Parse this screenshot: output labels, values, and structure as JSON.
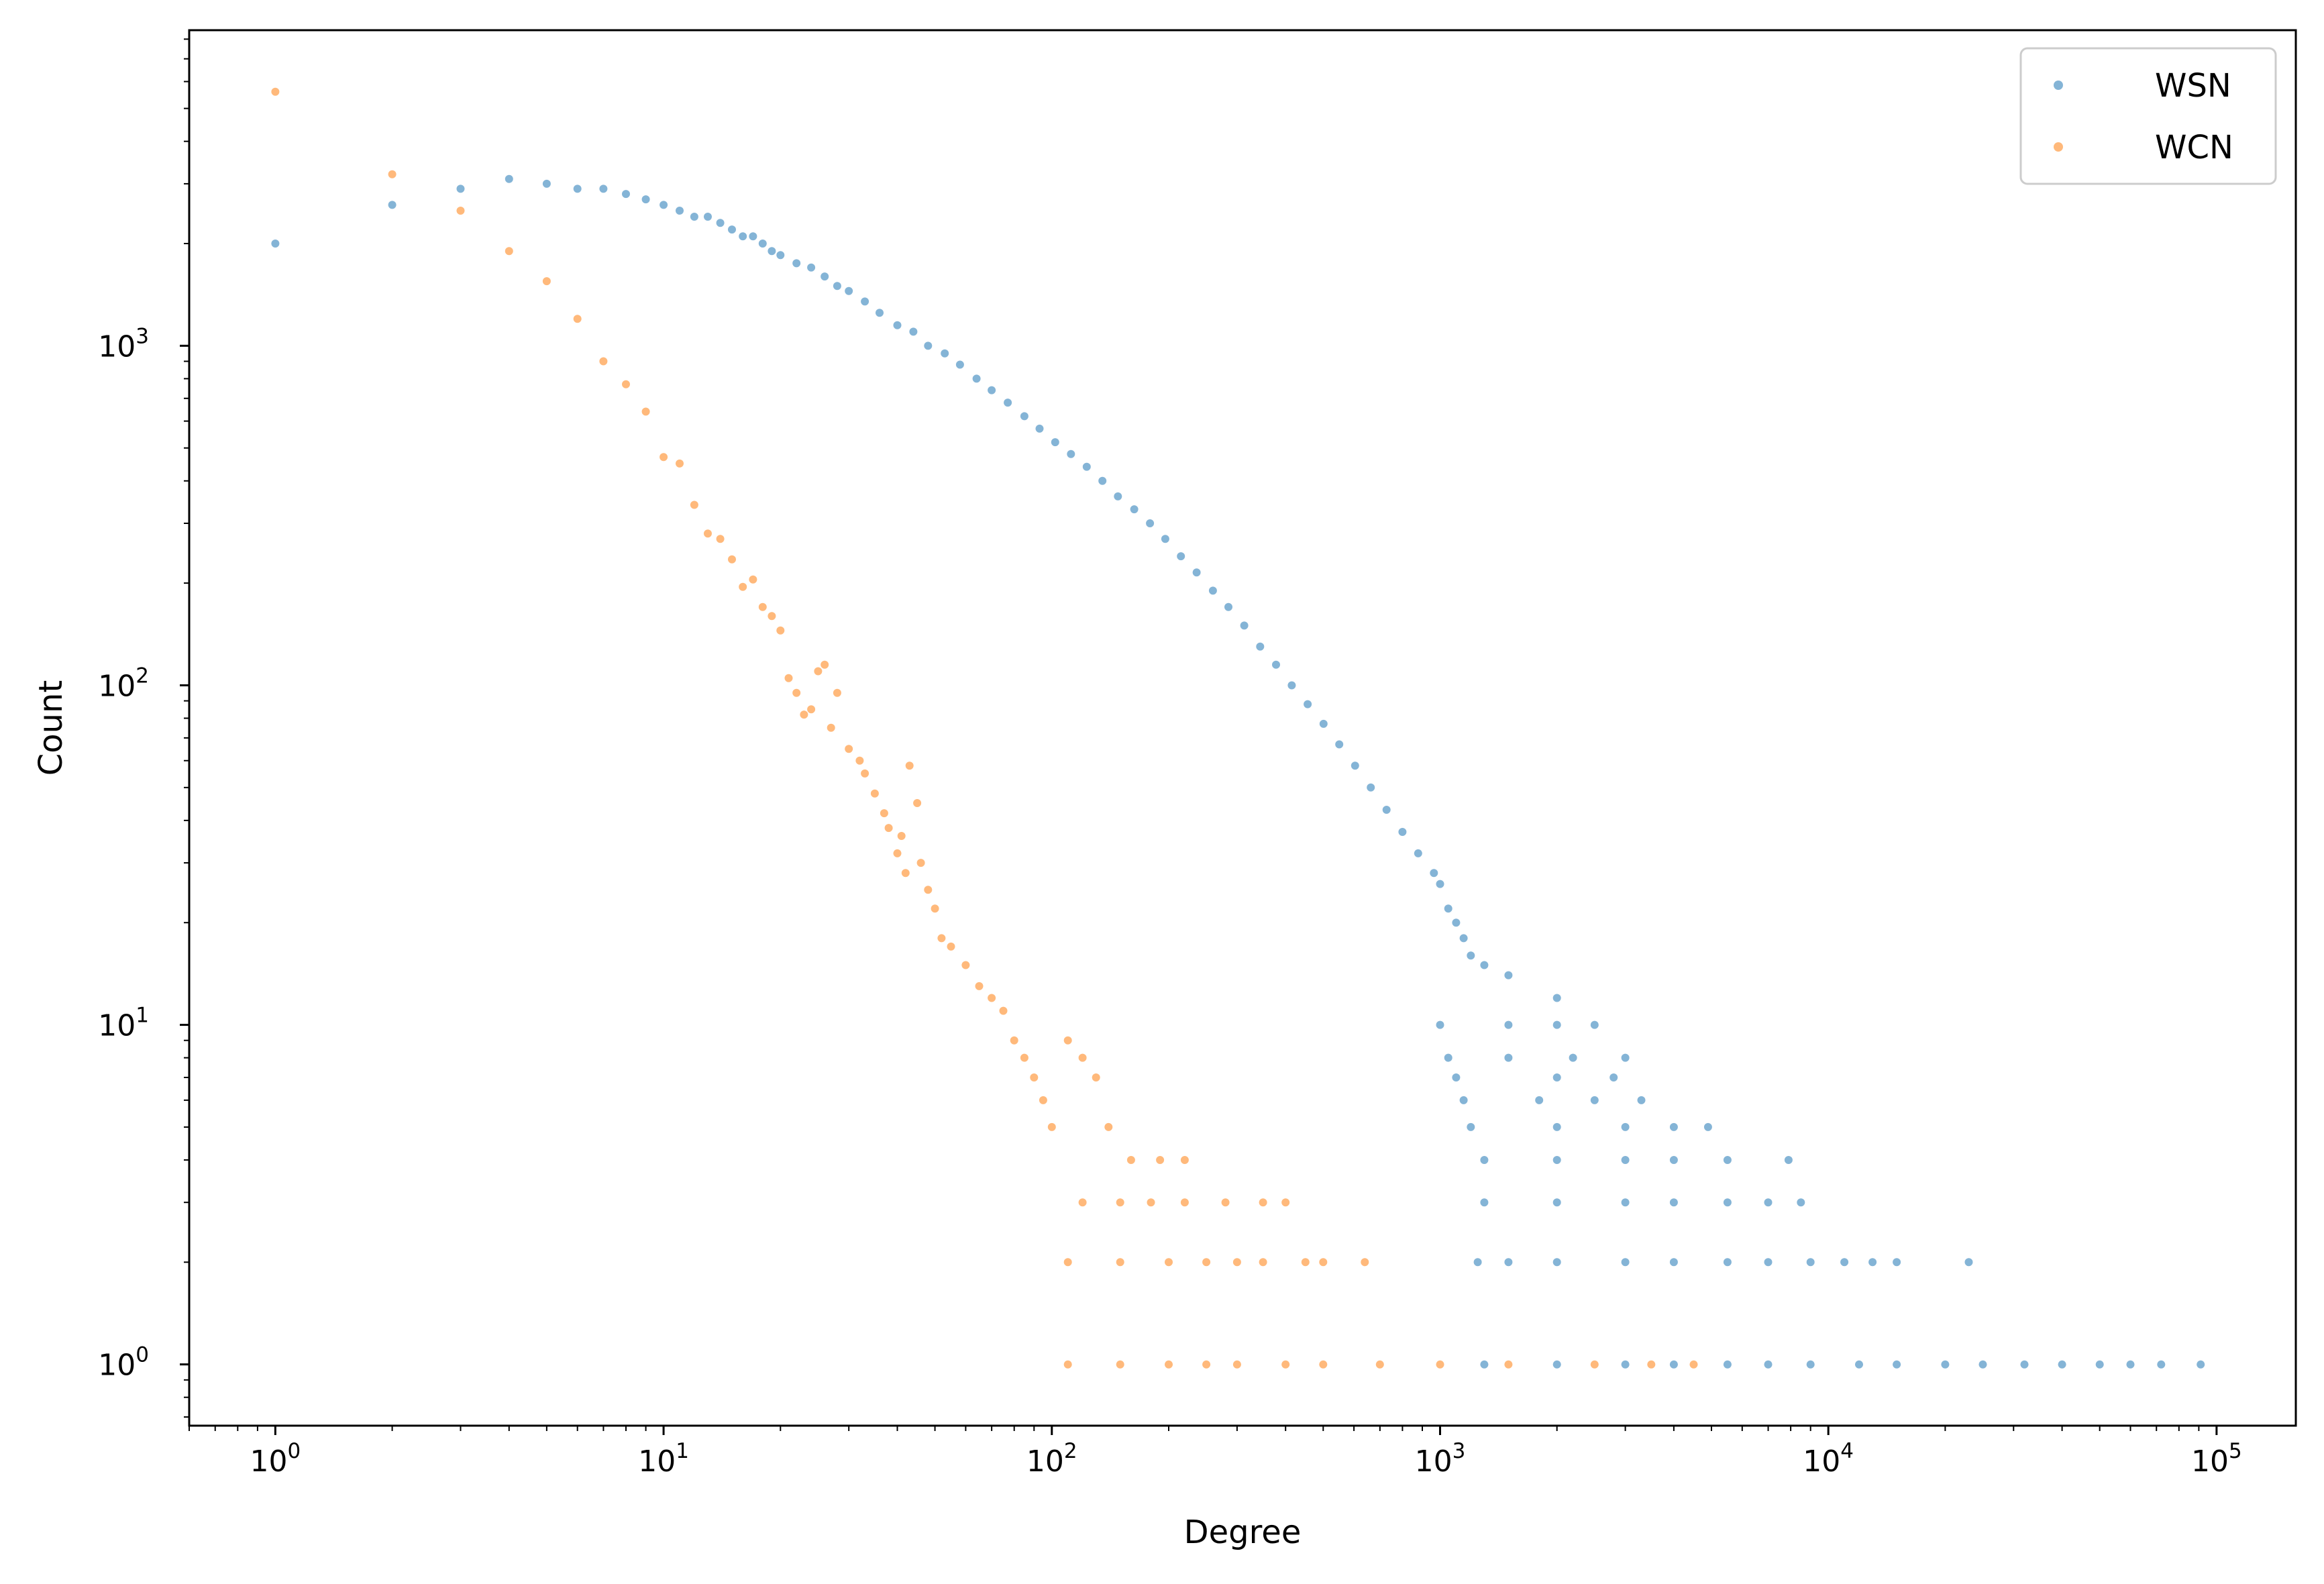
{
  "chart_data": {
    "type": "scatter",
    "xlabel": "Degree",
    "ylabel": "Count",
    "xscale": "log",
    "yscale": "log",
    "xlim": [
      0.6,
      160000
    ],
    "ylim": [
      0.66,
      8500
    ],
    "xticks": [
      {
        "value": 1,
        "base": "10",
        "exp": "0"
      },
      {
        "value": 10,
        "base": "10",
        "exp": "1"
      },
      {
        "value": 100,
        "base": "10",
        "exp": "2"
      },
      {
        "value": 1000,
        "base": "10",
        "exp": "3"
      },
      {
        "value": 10000,
        "base": "10",
        "exp": "4"
      },
      {
        "value": 100000,
        "base": "10",
        "exp": "5"
      }
    ],
    "yticks": [
      {
        "value": 1,
        "base": "10",
        "exp": "0"
      },
      {
        "value": 10,
        "base": "10",
        "exp": "1"
      },
      {
        "value": 100,
        "base": "10",
        "exp": "2"
      },
      {
        "value": 1000,
        "base": "10",
        "exp": "3"
      }
    ],
    "grid": false,
    "legend_position": "top-right",
    "series": [
      {
        "name": "WSN",
        "color": "#1f77b4",
        "points": [
          [
            1,
            2000
          ],
          [
            2,
            2600
          ],
          [
            3,
            2900
          ],
          [
            4,
            3100
          ],
          [
            5,
            3000
          ],
          [
            6,
            2900
          ],
          [
            7,
            2900
          ],
          [
            8,
            2800
          ],
          [
            9,
            2700
          ],
          [
            10,
            2600
          ],
          [
            11,
            2500
          ],
          [
            12,
            2400
          ],
          [
            13,
            2400
          ],
          [
            14,
            2300
          ],
          [
            15,
            2200
          ],
          [
            16,
            2100
          ],
          [
            17,
            2100
          ],
          [
            18,
            2000
          ],
          [
            19,
            1900
          ],
          [
            20,
            1850
          ],
          [
            22,
            1750
          ],
          [
            24,
            1700
          ],
          [
            26,
            1600
          ],
          [
            28,
            1500
          ],
          [
            30,
            1450
          ],
          [
            33,
            1350
          ],
          [
            36,
            1250
          ],
          [
            40,
            1150
          ],
          [
            44,
            1100
          ],
          [
            48,
            1000
          ],
          [
            53,
            950
          ],
          [
            58,
            880
          ],
          [
            64,
            800
          ],
          [
            70,
            740
          ],
          [
            77,
            680
          ],
          [
            85,
            620
          ],
          [
            93,
            570
          ],
          [
            102,
            520
          ],
          [
            112,
            480
          ],
          [
            123,
            440
          ],
          [
            135,
            400
          ],
          [
            148,
            360
          ],
          [
            163,
            330
          ],
          [
            179,
            300
          ],
          [
            196,
            270
          ],
          [
            215,
            240
          ],
          [
            236,
            215
          ],
          [
            260,
            190
          ],
          [
            285,
            170
          ],
          [
            313,
            150
          ],
          [
            344,
            130
          ],
          [
            378,
            115
          ],
          [
            415,
            100
          ],
          [
            456,
            88
          ],
          [
            501,
            77
          ],
          [
            550,
            67
          ],
          [
            604,
            58
          ],
          [
            663,
            50
          ],
          [
            728,
            43
          ],
          [
            800,
            37
          ],
          [
            878,
            32
          ],
          [
            964,
            28
          ],
          [
            1000,
            26
          ],
          [
            1050,
            22
          ],
          [
            1100,
            20
          ],
          [
            1150,
            18
          ],
          [
            1200,
            16
          ],
          [
            1300,
            15
          ],
          [
            1500,
            14
          ],
          [
            2000,
            12
          ],
          [
            1000,
            10
          ],
          [
            1500,
            10
          ],
          [
            2000,
            10
          ],
          [
            2500,
            10
          ],
          [
            1050,
            8
          ],
          [
            1500,
            8
          ],
          [
            2200,
            8
          ],
          [
            3000,
            8
          ],
          [
            1100,
            7
          ],
          [
            2000,
            7
          ],
          [
            2800,
            7
          ],
          [
            1150,
            6
          ],
          [
            1800,
            6
          ],
          [
            2500,
            6
          ],
          [
            3300,
            6
          ],
          [
            1200,
            5
          ],
          [
            2000,
            5
          ],
          [
            3000,
            5
          ],
          [
            4000,
            5
          ],
          [
            4900,
            5
          ],
          [
            1300,
            4
          ],
          [
            2000,
            4
          ],
          [
            3000,
            4
          ],
          [
            4000,
            4
          ],
          [
            5500,
            4
          ],
          [
            7900,
            4
          ],
          [
            1300,
            3
          ],
          [
            2000,
            3
          ],
          [
            3000,
            3
          ],
          [
            4000,
            3
          ],
          [
            5500,
            3
          ],
          [
            7000,
            3
          ],
          [
            8500,
            3
          ],
          [
            1250,
            2
          ],
          [
            1500,
            2
          ],
          [
            2000,
            2
          ],
          [
            3000,
            2
          ],
          [
            4000,
            2
          ],
          [
            5500,
            2
          ],
          [
            7000,
            2
          ],
          [
            9000,
            2
          ],
          [
            11000,
            2
          ],
          [
            13000,
            2
          ],
          [
            15000,
            2
          ],
          [
            23000,
            2
          ],
          [
            1300,
            1
          ],
          [
            2000,
            1
          ],
          [
            3000,
            1
          ],
          [
            4000,
            1
          ],
          [
            5500,
            1
          ],
          [
            7000,
            1
          ],
          [
            9000,
            1
          ],
          [
            12000,
            1
          ],
          [
            15000,
            1
          ],
          [
            20000,
            1
          ],
          [
            25000,
            1
          ],
          [
            32000,
            1
          ],
          [
            40000,
            1
          ],
          [
            50000,
            1
          ],
          [
            60000,
            1
          ],
          [
            72000,
            1
          ],
          [
            91000,
            1
          ]
        ]
      },
      {
        "name": "WCN",
        "color": "#ff7f0e",
        "points": [
          [
            1,
            5600
          ],
          [
            2,
            3200
          ],
          [
            3,
            2500
          ],
          [
            4,
            1900
          ],
          [
            5,
            1550
          ],
          [
            6,
            1200
          ],
          [
            7,
            900
          ],
          [
            8,
            770
          ],
          [
            9,
            640
          ],
          [
            10,
            470
          ],
          [
            11,
            450
          ],
          [
            12,
            340
          ],
          [
            13,
            280
          ],
          [
            14,
            270
          ],
          [
            15,
            235
          ],
          [
            16,
            195
          ],
          [
            17,
            205
          ],
          [
            18,
            170
          ],
          [
            19,
            160
          ],
          [
            20,
            145
          ],
          [
            21,
            105
          ],
          [
            22,
            95
          ],
          [
            23,
            82
          ],
          [
            24,
            85
          ],
          [
            25,
            110
          ],
          [
            26,
            115
          ],
          [
            27,
            75
          ],
          [
            28,
            95
          ],
          [
            30,
            65
          ],
          [
            32,
            60
          ],
          [
            33,
            55
          ],
          [
            35,
            48
          ],
          [
            37,
            42
          ],
          [
            38,
            38
          ],
          [
            40,
            32
          ],
          [
            41,
            36
          ],
          [
            42,
            28
          ],
          [
            43,
            58
          ],
          [
            45,
            45
          ],
          [
            46,
            30
          ],
          [
            48,
            25
          ],
          [
            50,
            22
          ],
          [
            52,
            18
          ],
          [
            55,
            17
          ],
          [
            60,
            15
          ],
          [
            65,
            13
          ],
          [
            70,
            12
          ],
          [
            75,
            11
          ],
          [
            80,
            9
          ],
          [
            85,
            8
          ],
          [
            90,
            7
          ],
          [
            95,
            6
          ],
          [
            100,
            5
          ],
          [
            110,
            9
          ],
          [
            120,
            8
          ],
          [
            130,
            7
          ],
          [
            140,
            5
          ],
          [
            160,
            4
          ],
          [
            190,
            4
          ],
          [
            220,
            4
          ],
          [
            120,
            3
          ],
          [
            150,
            3
          ],
          [
            180,
            3
          ],
          [
            220,
            3
          ],
          [
            280,
            3
          ],
          [
            350,
            3
          ],
          [
            400,
            3
          ],
          [
            110,
            2
          ],
          [
            150,
            2
          ],
          [
            200,
            2
          ],
          [
            250,
            2
          ],
          [
            300,
            2
          ],
          [
            350,
            2
          ],
          [
            450,
            2
          ],
          [
            500,
            2
          ],
          [
            640,
            2
          ],
          [
            110,
            1
          ],
          [
            150,
            1
          ],
          [
            200,
            1
          ],
          [
            250,
            1
          ],
          [
            300,
            1
          ],
          [
            400,
            1
          ],
          [
            500,
            1
          ],
          [
            700,
            1
          ],
          [
            1000,
            1
          ],
          [
            1500,
            1
          ],
          [
            2500,
            1
          ],
          [
            3500,
            1
          ],
          [
            4500,
            1
          ]
        ]
      }
    ]
  }
}
